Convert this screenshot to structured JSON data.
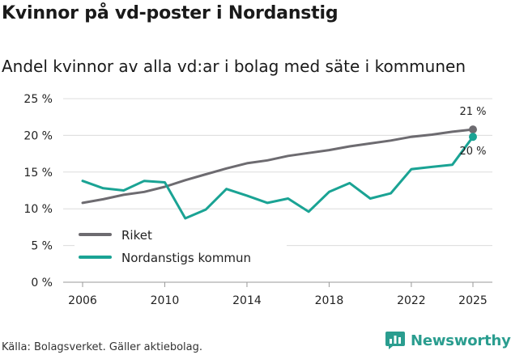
{
  "title": "Kvinnor på vd-poster i Nordanstig",
  "subtitle": "Andel kvinnor av alla vd:ar i bolag med säte i kommunen",
  "source": "Källa: Bolagsverket. Gäller aktiebolag.",
  "brand": "Newsworthy",
  "colors": {
    "riket": "#6d6b70",
    "nordanstig": "#1aa394",
    "grid": "#dcdcdc",
    "brand": "#2a9d8f"
  },
  "chart_data": {
    "type": "line",
    "title": "Kvinnor på vd-poster i Nordanstig",
    "subtitle": "Andel kvinnor av alla vd:ar i bolag med säte i kommunen",
    "xlabel": "",
    "ylabel": "",
    "xlim": [
      2006,
      2025
    ],
    "ylim": [
      0,
      25
    ],
    "x_ticks": [
      2006,
      2010,
      2014,
      2018,
      2022,
      2025
    ],
    "y_ticks": [
      0,
      5,
      10,
      15,
      20,
      25
    ],
    "y_tick_labels": [
      "0 %",
      "5 %",
      "10 %",
      "15 %",
      "20 %",
      "25 %"
    ],
    "grid": true,
    "legend_position": "bottom-left",
    "x": [
      2006,
      2007,
      2008,
      2009,
      2010,
      2011,
      2012,
      2013,
      2014,
      2015,
      2016,
      2017,
      2018,
      2019,
      2020,
      2021,
      2022,
      2023,
      2024,
      2025
    ],
    "series": [
      {
        "name": "Riket",
        "color": "#6d6b70",
        "values": [
          10.8,
          11.3,
          11.9,
          12.3,
          13.0,
          13.9,
          14.7,
          15.5,
          16.2,
          16.6,
          17.2,
          17.6,
          18.0,
          18.5,
          18.9,
          19.3,
          19.8,
          20.1,
          20.5,
          20.8
        ],
        "end_label": "21 %"
      },
      {
        "name": "Nordanstigs kommun",
        "color": "#1aa394",
        "values": [
          13.8,
          12.8,
          12.5,
          13.8,
          13.6,
          8.7,
          9.9,
          12.7,
          11.8,
          10.8,
          11.4,
          9.6,
          12.3,
          13.5,
          11.4,
          12.1,
          15.4,
          15.7,
          16.0,
          19.8
        ],
        "end_label": "20 %"
      }
    ]
  }
}
